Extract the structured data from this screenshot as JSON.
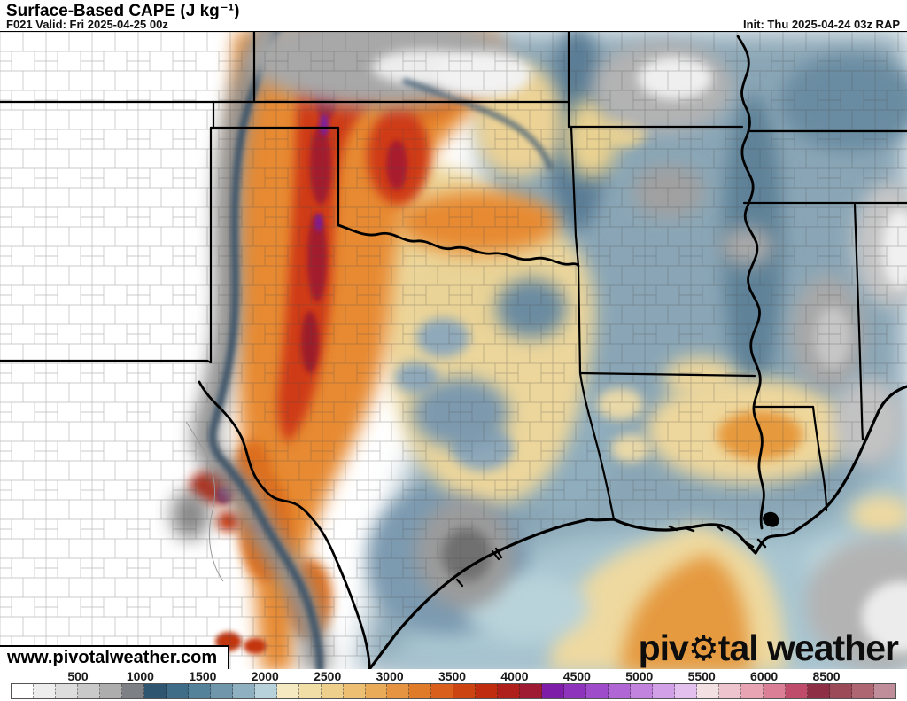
{
  "header": {
    "title": "Surface-Based CAPE (J kg⁻¹)",
    "forecast": "F021 Valid: Fri 2025-04-25 00z",
    "init": "Init: Thu 2025-04-24 03z RAP"
  },
  "watermark": {
    "text": "www.pivotalweather.com"
  },
  "logo": {
    "prefix": "piv",
    "gear_icon": "⚙",
    "suffix": "tal weather"
  },
  "colorbar": {
    "unit": "J kg⁻¹",
    "ticks": [
      "500",
      "1000",
      "1500",
      "2000",
      "2500",
      "3000",
      "3500",
      "4000",
      "4500",
      "5000",
      "5500",
      "6000",
      "8500"
    ],
    "tick_values": [
      500,
      1000,
      1500,
      2000,
      2500,
      3000,
      3500,
      4000,
      4500,
      5000,
      5500,
      6000,
      8500
    ],
    "cells": [
      "#ffffff",
      "#ededed",
      "#dddddd",
      "#c9c9c9",
      "#adadad",
      "#7d8186",
      "#2f5670",
      "#3f6d87",
      "#54829b",
      "#7096ab",
      "#8fb0c0",
      "#b7d2da",
      "#f4e9c0",
      "#f1dda6",
      "#efcf8c",
      "#ecbf72",
      "#e9ab58",
      "#e69441",
      "#e07b2a",
      "#d8601c",
      "#cc4412",
      "#bf2c10",
      "#af1f1b",
      "#9f1a33",
      "#7e1da8",
      "#8d33bc",
      "#9f4cca",
      "#b066d4",
      "#c183de",
      "#d2a0e6",
      "#e3c0ee",
      "#f2e0e3",
      "#eec5ce",
      "#e9a4b4",
      "#db7f96",
      "#c04c6c",
      "#8e2f45",
      "#9d4a58",
      "#ae6673",
      "#c08e9b"
    ]
  },
  "map_palette": {
    "near_zero_white": "#ffffff",
    "low_gray": "#9b9b9b",
    "slate_edge": "#42596c",
    "moderate_blue": "#8aa6b6",
    "dark_blue": "#5d8098",
    "gulf_light_blue": "#a9c6d1",
    "elevated_tan": "#ecd69b",
    "high_orange": "#e78a33",
    "very_high_red": "#cf3a12",
    "extreme_crimson": "#a21d2e",
    "extreme_purple": "#7c1fa3",
    "border_black": "#000000"
  }
}
